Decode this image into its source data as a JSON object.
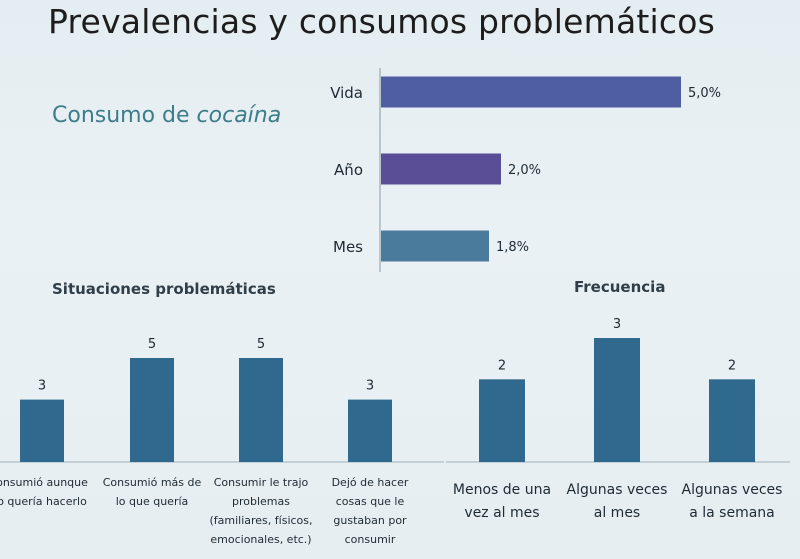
{
  "slide": {
    "title": "Prevalencias y consumos problemáticos",
    "subtitle_prefix": "Consumo de ",
    "subtitle_italic": "cocaína"
  },
  "colors": {
    "prevalence_bar": "#4f5ea3",
    "year_bar": "#5a4f96",
    "month_bar": "#4a7a9c",
    "column_bar": "#2f6a8e"
  },
  "chart_data": [
    {
      "type": "bar",
      "orientation": "horizontal",
      "categories": [
        "Vida",
        "Año",
        "Mes"
      ],
      "values": [
        5.0,
        2.0,
        1.8
      ],
      "value_labels": [
        "5,0%",
        "2,0%",
        "1,8%"
      ],
      "xlim": [
        0,
        5.0
      ]
    },
    {
      "type": "bar",
      "title": "Situaciones problemáticas",
      "categories": [
        [
          "onsumió aunque",
          "o quería hacerlo"
        ],
        [
          "Consumió más de",
          "lo que quería"
        ],
        [
          "Consumir le trajo",
          "problemas",
          "(familiares, físicos,",
          "emocionales, etc.)"
        ],
        [
          "Dejó de hacer",
          "cosas que le",
          "gustaban por",
          "consumir"
        ]
      ],
      "values": [
        3,
        5,
        5,
        3
      ],
      "ylim": [
        0,
        5
      ]
    },
    {
      "type": "bar",
      "title": "Frecuencia",
      "categories": [
        [
          "Menos de una",
          "vez al mes"
        ],
        [
          "Algunas veces",
          "al mes"
        ],
        [
          "Algunas veces",
          "a la semana"
        ]
      ],
      "values": [
        2,
        3,
        2
      ],
      "ylim": [
        0,
        3
      ]
    }
  ]
}
